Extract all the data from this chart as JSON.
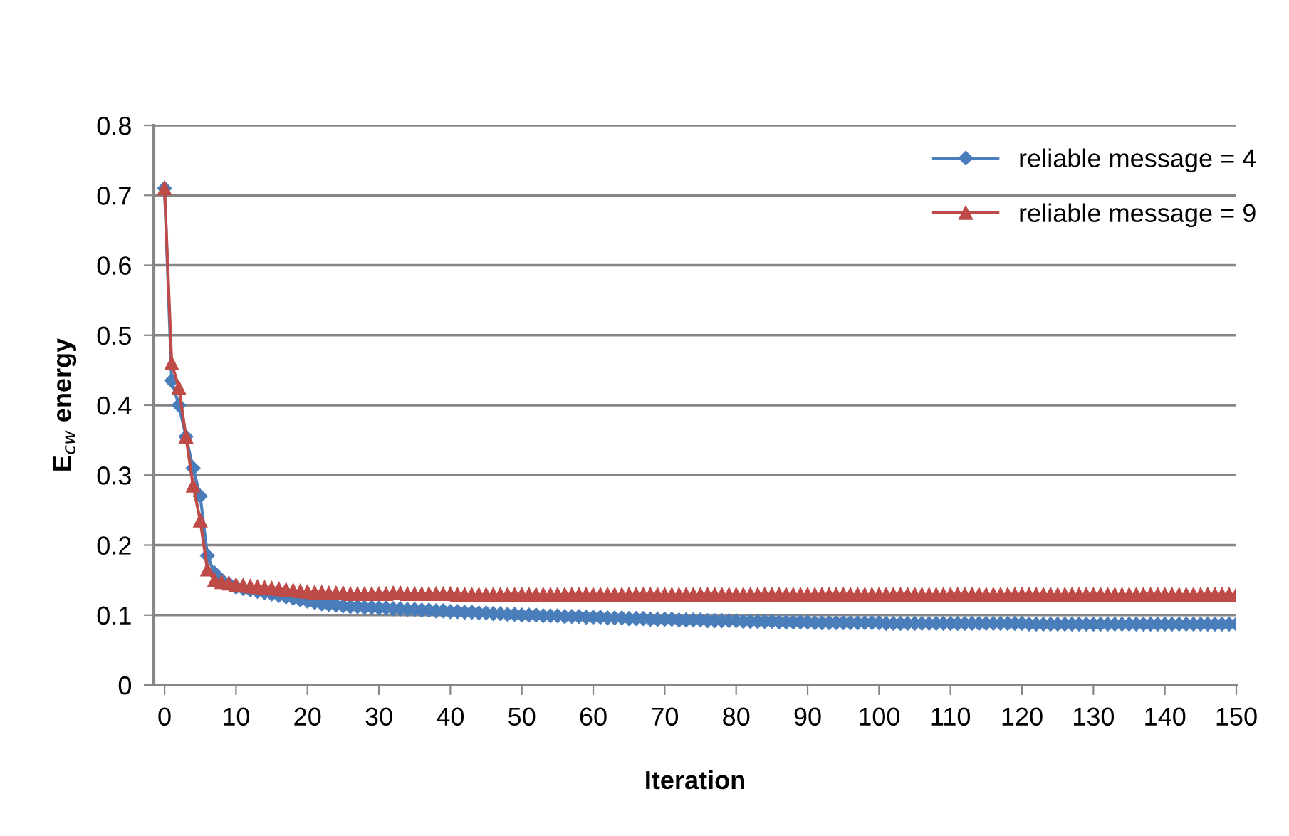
{
  "chart_data": {
    "type": "line",
    "xlabel": "Iteration",
    "ylabel": "E$_{cw}$ energy",
    "x": [
      0,
      1,
      2,
      3,
      4,
      5,
      6,
      7,
      8,
      9,
      10,
      11,
      12,
      13,
      14,
      15,
      16,
      17,
      18,
      19,
      20,
      21,
      22,
      23,
      24,
      25,
      26,
      27,
      28,
      29,
      30,
      31,
      32,
      33,
      34,
      35,
      36,
      37,
      38,
      39,
      40,
      41,
      42,
      43,
      44,
      45,
      46,
      47,
      48,
      49,
      50,
      51,
      52,
      53,
      54,
      55,
      56,
      57,
      58,
      59,
      60,
      61,
      62,
      63,
      64,
      65,
      66,
      67,
      68,
      69,
      70,
      71,
      72,
      73,
      74,
      75,
      76,
      77,
      78,
      79,
      80,
      81,
      82,
      83,
      84,
      85,
      86,
      87,
      88,
      89,
      90,
      91,
      92,
      93,
      94,
      95,
      96,
      97,
      98,
      99,
      100,
      101,
      102,
      103,
      104,
      105,
      106,
      107,
      108,
      109,
      110,
      111,
      112,
      113,
      114,
      115,
      116,
      117,
      118,
      119,
      120,
      121,
      122,
      123,
      124,
      125,
      126,
      127,
      128,
      129,
      130,
      131,
      132,
      133,
      134,
      135,
      136,
      137,
      138,
      139,
      140,
      141,
      142,
      143,
      144,
      145,
      146,
      147,
      148,
      149,
      150
    ],
    "series": [
      {
        "name": "reliable message = 4",
        "color": "#4a7ebb",
        "marker": "diamond",
        "values": [
          0.71,
          0.435,
          0.4,
          0.355,
          0.31,
          0.27,
          0.185,
          0.16,
          0.15,
          0.145,
          0.14,
          0.138,
          0.136,
          0.134,
          0.132,
          0.13,
          0.128,
          0.126,
          0.124,
          0.122,
          0.12,
          0.118,
          0.116,
          0.115,
          0.114,
          0.113,
          0.112,
          0.112,
          0.111,
          0.111,
          0.11,
          0.11,
          0.109,
          0.109,
          0.108,
          0.108,
          0.107,
          0.107,
          0.106,
          0.106,
          0.105,
          0.105,
          0.104,
          0.104,
          0.103,
          0.103,
          0.102,
          0.102,
          0.101,
          0.101,
          0.1,
          0.1,
          0.1,
          0.099,
          0.099,
          0.099,
          0.098,
          0.098,
          0.098,
          0.097,
          0.097,
          0.097,
          0.096,
          0.096,
          0.096,
          0.095,
          0.095,
          0.095,
          0.094,
          0.094,
          0.094,
          0.094,
          0.093,
          0.093,
          0.093,
          0.093,
          0.092,
          0.092,
          0.092,
          0.092,
          0.092,
          0.091,
          0.091,
          0.091,
          0.091,
          0.091,
          0.09,
          0.09,
          0.09,
          0.09,
          0.09,
          0.089,
          0.089,
          0.089,
          0.089,
          0.089,
          0.089,
          0.089,
          0.089,
          0.089,
          0.089,
          0.088,
          0.088,
          0.088,
          0.088,
          0.088,
          0.088,
          0.088,
          0.088,
          0.088,
          0.088,
          0.088,
          0.088,
          0.088,
          0.088,
          0.088,
          0.088,
          0.088,
          0.088,
          0.088,
          0.088,
          0.087,
          0.087,
          0.087,
          0.087,
          0.087,
          0.087,
          0.087,
          0.087,
          0.087,
          0.087,
          0.087,
          0.087,
          0.087,
          0.087,
          0.087,
          0.087,
          0.087,
          0.087,
          0.087,
          0.087,
          0.087,
          0.087,
          0.087,
          0.087,
          0.087,
          0.087,
          0.087,
          0.087,
          0.087,
          0.087
        ]
      },
      {
        "name": "reliable message = 9",
        "color": "#be4b48",
        "marker": "triangle",
        "values": [
          0.71,
          0.46,
          0.425,
          0.355,
          0.285,
          0.235,
          0.165,
          0.15,
          0.147,
          0.145,
          0.143,
          0.142,
          0.141,
          0.14,
          0.139,
          0.138,
          0.137,
          0.136,
          0.135,
          0.134,
          0.133,
          0.132,
          0.132,
          0.131,
          0.131,
          0.131,
          0.13,
          0.13,
          0.13,
          0.13,
          0.13,
          0.13,
          0.131,
          0.131,
          0.13,
          0.13,
          0.13,
          0.13,
          0.13,
          0.13,
          0.13,
          0.129,
          0.129,
          0.129,
          0.129,
          0.129,
          0.129,
          0.129,
          0.129,
          0.129,
          0.129,
          0.129,
          0.129,
          0.129,
          0.129,
          0.129,
          0.129,
          0.129,
          0.129,
          0.129,
          0.129,
          0.129,
          0.129,
          0.129,
          0.129,
          0.129,
          0.129,
          0.129,
          0.129,
          0.129,
          0.129,
          0.129,
          0.129,
          0.129,
          0.129,
          0.129,
          0.129,
          0.129,
          0.129,
          0.129,
          0.129,
          0.129,
          0.129,
          0.129,
          0.129,
          0.129,
          0.129,
          0.129,
          0.129,
          0.129,
          0.129,
          0.129,
          0.129,
          0.129,
          0.129,
          0.129,
          0.129,
          0.129,
          0.129,
          0.129,
          0.129,
          0.129,
          0.129,
          0.129,
          0.129,
          0.129,
          0.129,
          0.129,
          0.129,
          0.129,
          0.129,
          0.129,
          0.129,
          0.129,
          0.129,
          0.129,
          0.129,
          0.129,
          0.129,
          0.129,
          0.129,
          0.129,
          0.129,
          0.129,
          0.129,
          0.129,
          0.129,
          0.129,
          0.129,
          0.129,
          0.129,
          0.129,
          0.129,
          0.129,
          0.129,
          0.129,
          0.129,
          0.129,
          0.129,
          0.129,
          0.129,
          0.129,
          0.129,
          0.129,
          0.129,
          0.129,
          0.129,
          0.129,
          0.129,
          0.129,
          0.129
        ]
      }
    ],
    "xlim": [
      -1.5,
      150
    ],
    "xticks": [
      0,
      10,
      20,
      30,
      40,
      50,
      60,
      70,
      80,
      90,
      100,
      110,
      120,
      130,
      140,
      150
    ],
    "ylim": [
      0,
      0.8
    ],
    "yticks": [
      0,
      0.1,
      0.2,
      0.3,
      0.4,
      0.5,
      0.6,
      0.7,
      0.8
    ],
    "grid": "y",
    "legend": "top right",
    "line_style": "solid"
  }
}
